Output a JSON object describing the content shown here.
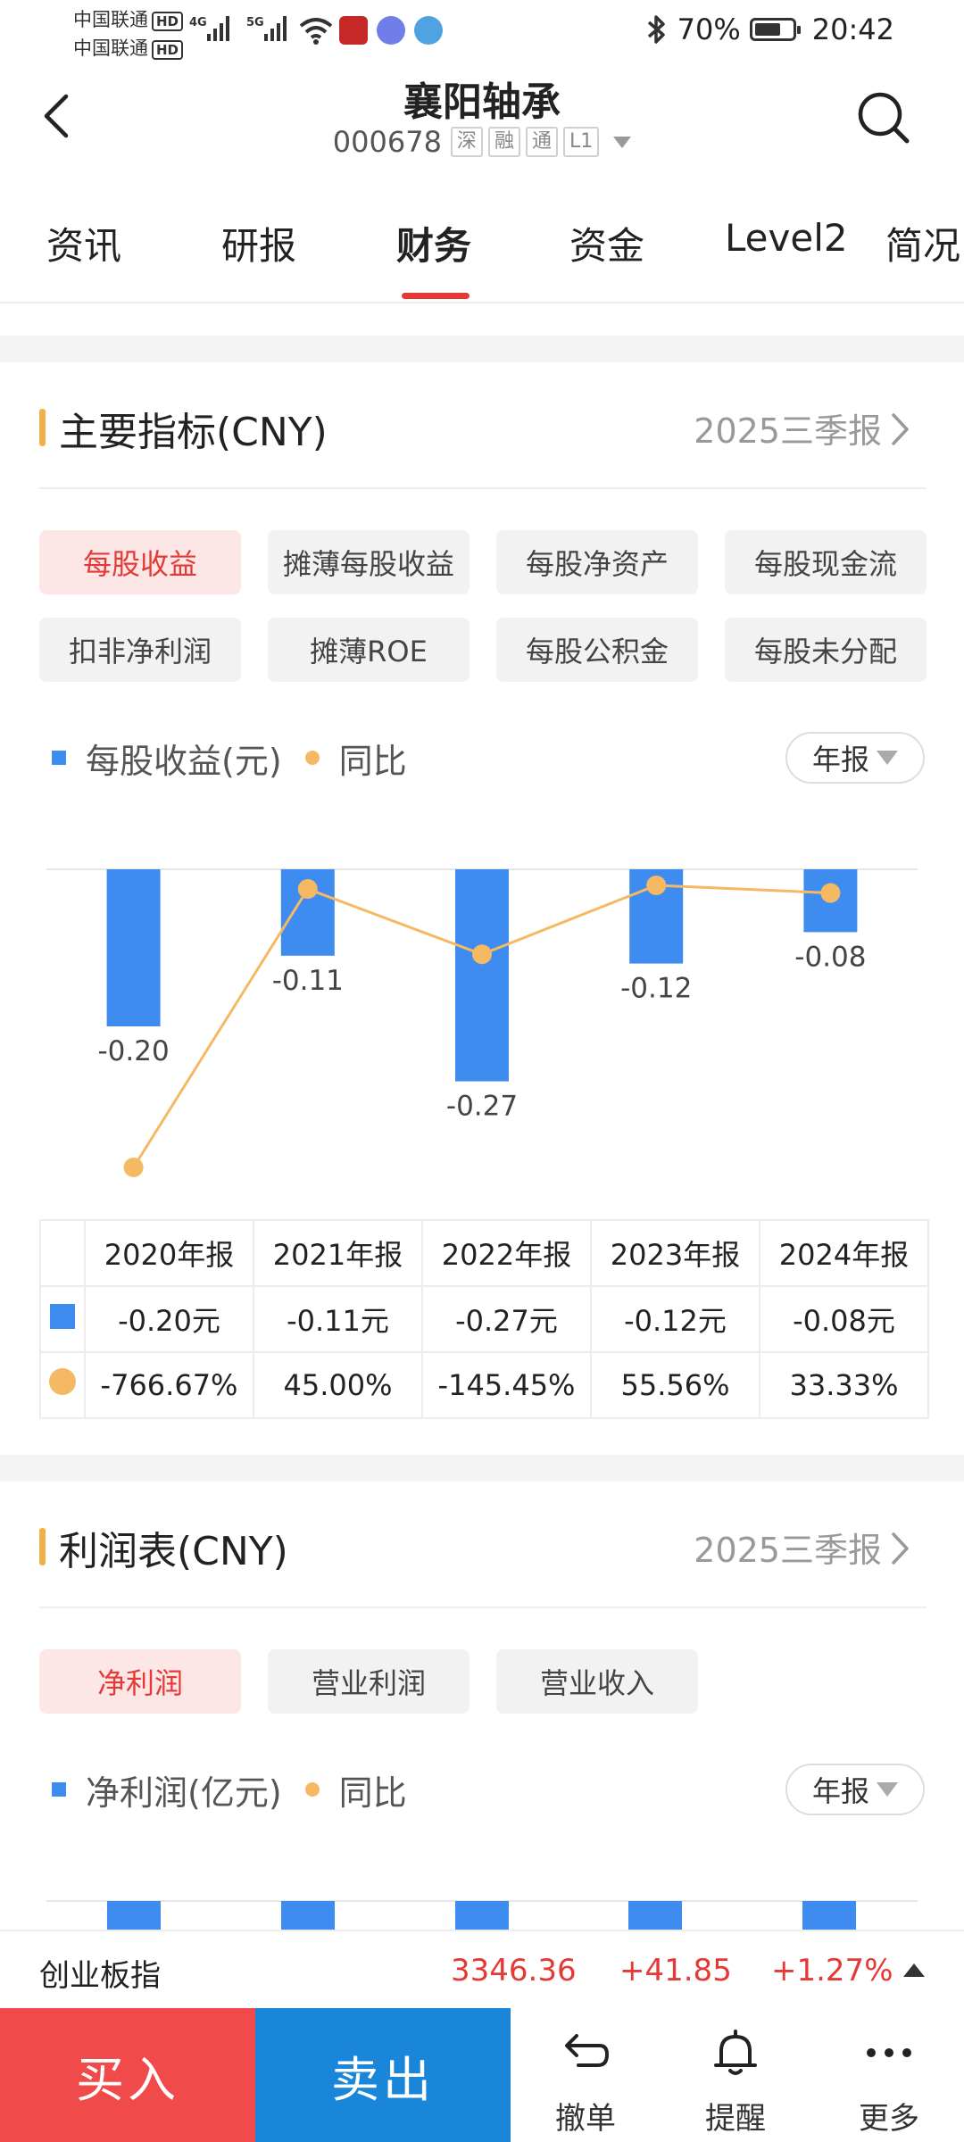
{
  "status_bar": {
    "carrier_1": "中国联通",
    "carrier_2": "中国联通",
    "hd_1": "HD",
    "hd_2": "HD",
    "net_1": "4G",
    "net_2": "5G",
    "battery_percent": "70%",
    "time": "20:42",
    "battery_level": 0.7
  },
  "header": {
    "title": "襄阳轴承",
    "code": "000678",
    "tags": [
      "深",
      "融",
      "通",
      "L1"
    ]
  },
  "tabs": [
    {
      "label": "资讯"
    },
    {
      "label": "研报"
    },
    {
      "label": "财务",
      "active": true
    },
    {
      "label": "资金"
    },
    {
      "label": "Level2"
    },
    {
      "label": "简况"
    }
  ],
  "indicators": {
    "title": "主要指标(CNY)",
    "period": "2025三季报",
    "chips": [
      "每股收益",
      "摊薄每股收益",
      "每股净资产",
      "每股现金流",
      "扣非净利润",
      "摊薄ROE",
      "每股公积金",
      "每股未分配"
    ],
    "active_chip": 0,
    "legend_bar": "每股收益(元)",
    "legend_line": "同比",
    "period_select": "年报"
  },
  "chart_data": {
    "type": "bar",
    "categories": [
      "2020年报",
      "2021年报",
      "2022年报",
      "2023年报",
      "2024年报"
    ],
    "series": [
      {
        "name": "每股收益(元)",
        "type": "bar",
        "values": [
          -0.2,
          -0.11,
          -0.27,
          -0.12,
          -0.08
        ],
        "labels": [
          "-0.20",
          "-0.11",
          "-0.27",
          "-0.12",
          "-0.08"
        ],
        "color": "#3e8cf0"
      },
      {
        "name": "同比",
        "type": "line",
        "values": [
          -766.67,
          45.0,
          -145.45,
          55.56,
          33.33
        ],
        "color": "#f6b963"
      }
    ]
  },
  "table": {
    "headers": [
      "2020年报",
      "2021年报",
      "2022年报",
      "2023年报",
      "2024年报"
    ],
    "eps_row": [
      "-0.20元",
      "-0.11元",
      "-0.27元",
      "-0.12元",
      "-0.08元"
    ],
    "yoy_row": [
      "-766.67%",
      "45.00%",
      "-145.45%",
      "55.56%",
      "33.33%"
    ],
    "positive_color": "#e53935",
    "negative_color": "#1b8a3a"
  },
  "income": {
    "title": "利润表(CNY)",
    "period": "2025三季报",
    "chips": [
      "净利润",
      "营业利润",
      "营业收入"
    ],
    "active_chip": 0,
    "legend_bar": "净利润(亿元)",
    "legend_line": "同比",
    "period_select": "年报"
  },
  "ticker": {
    "name": "创业板指",
    "value": "3346.36",
    "change": "+41.85",
    "percent": "+1.27%"
  },
  "bottom_bar": {
    "buy": "买入",
    "sell": "卖出",
    "revoke": "撤单",
    "alert": "提醒",
    "more": "更多"
  },
  "colors": {
    "accent_red": "#e53935",
    "accent_orange": "#f0b14a",
    "bar_blue": "#3e8cf0",
    "line_orange": "#f6b963"
  }
}
